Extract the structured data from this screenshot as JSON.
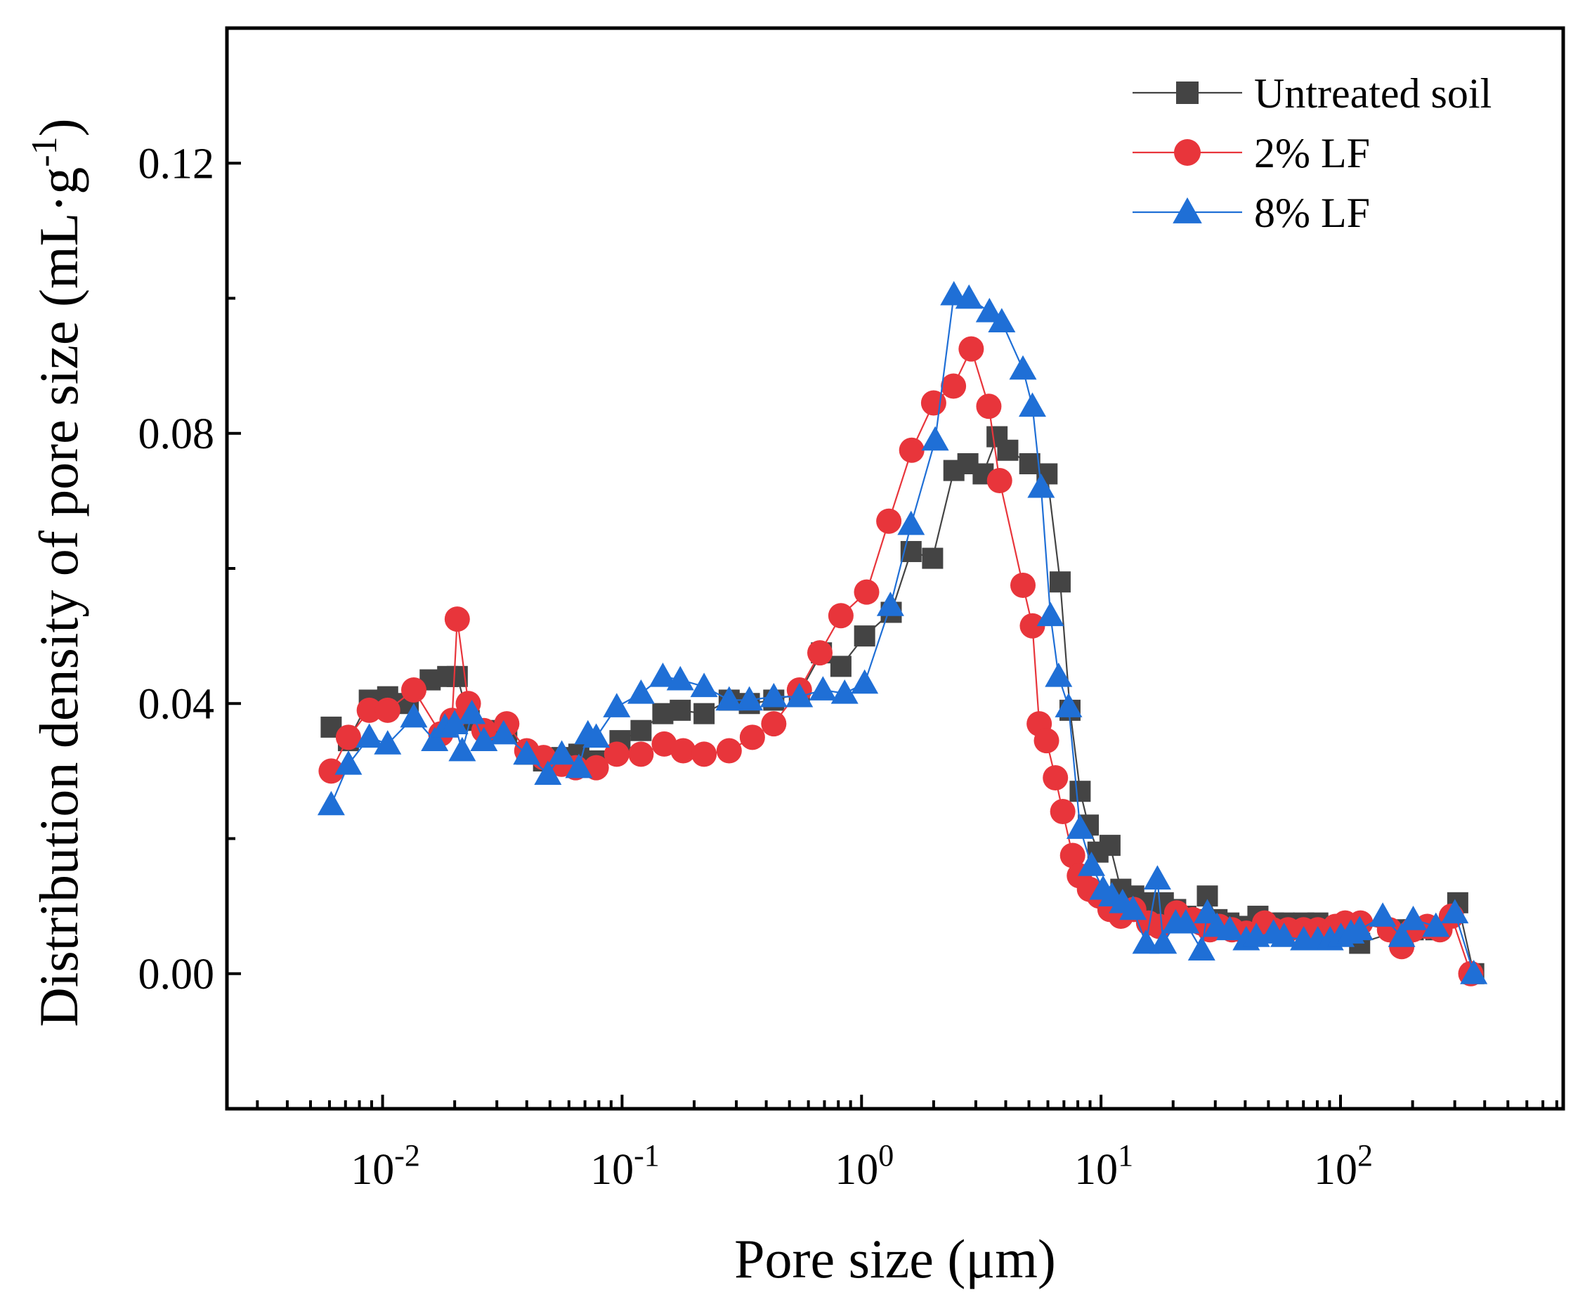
{
  "chart_data": {
    "type": "scatter",
    "title": "",
    "xlabel": "Pore size (μm)",
    "ylabel_main": "Distribution density of pore size (mL·g",
    "ylabel_sup": "-1",
    "ylabel_tail": ")",
    "xscale": "log",
    "xlim_log10": [
      -2.65,
      2.93
    ],
    "ylim": [
      -0.02,
      0.14
    ],
    "x_ticks": [
      {
        "base": "10",
        "exp": "-2",
        "log10": -2
      },
      {
        "base": "10",
        "exp": "-1",
        "log10": -1
      },
      {
        "base": "10",
        "exp": "0",
        "log10": 0
      },
      {
        "base": "10",
        "exp": "1",
        "log10": 1
      },
      {
        "base": "10",
        "exp": "2",
        "log10": 2
      }
    ],
    "y_ticks": [
      {
        "label": "0.00",
        "value": 0.0
      },
      {
        "label": "0.04",
        "value": 0.04
      },
      {
        "label": "0.08",
        "value": 0.08
      },
      {
        "label": "0.12",
        "value": 0.12
      }
    ],
    "y_minor_ticks": [
      0.02,
      0.06,
      0.1
    ],
    "legend_position": "top-right",
    "series": [
      {
        "name": "Untreated soil",
        "color": "#444444",
        "marker": "square",
        "x": [
          0.0061,
          0.0072,
          0.0088,
          0.0105,
          0.0128,
          0.0158,
          0.0187,
          0.0205,
          0.023,
          0.029,
          0.033,
          0.04,
          0.047,
          0.056,
          0.066,
          0.078,
          0.098,
          0.12,
          0.148,
          0.175,
          0.22,
          0.28,
          0.34,
          0.43,
          0.55,
          0.68,
          0.82,
          1.03,
          1.33,
          1.61,
          1.98,
          2.43,
          2.78,
          3.22,
          3.68,
          4.08,
          5.04,
          5.95,
          6.75,
          7.42,
          8.18,
          8.85,
          9.71,
          10.9,
          12.1,
          13.7,
          15.4,
          17.2,
          18.2,
          20.5,
          22.6,
          26.3,
          27.8,
          30.5,
          34.2,
          40.4,
          45.2,
          52.5,
          58.1,
          70.2,
          80.4,
          90.5,
          100.4,
          110.6,
          120.2,
          180.1,
          201.2,
          250.2,
          308.7,
          360.1
        ],
        "values": [
          0.0365,
          0.0345,
          0.0405,
          0.041,
          0.04,
          0.0435,
          0.044,
          0.044,
          0.0375,
          0.036,
          0.036,
          0.0325,
          0.0315,
          0.032,
          0.0325,
          0.0315,
          0.0345,
          0.036,
          0.0385,
          0.039,
          0.0385,
          0.0405,
          0.04,
          0.0405,
          0.0415,
          0.0475,
          0.0455,
          0.05,
          0.0535,
          0.0625,
          0.0615,
          0.0745,
          0.0755,
          0.074,
          0.0795,
          0.0775,
          0.0755,
          0.074,
          0.058,
          0.039,
          0.027,
          0.022,
          0.018,
          0.019,
          0.0125,
          0.0115,
          0.0105,
          0.0095,
          0.0105,
          0.0095,
          0.0085,
          0.008,
          0.0115,
          0.008,
          0.0075,
          0.007,
          0.0085,
          0.0075,
          0.0075,
          0.0075,
          0.0075,
          0.0065,
          0.0065,
          0.0065,
          0.0045,
          0.0065,
          0.0065,
          0.0065,
          0.0105,
          0.0
        ]
      },
      {
        "name": "2% LF",
        "color": "#e8353b",
        "marker": "circle",
        "x": [
          0.0061,
          0.0072,
          0.0088,
          0.0105,
          0.0135,
          0.0175,
          0.0195,
          0.0205,
          0.0228,
          0.0265,
          0.033,
          0.04,
          0.047,
          0.056,
          0.064,
          0.078,
          0.095,
          0.12,
          0.15,
          0.18,
          0.22,
          0.28,
          0.35,
          0.43,
          0.55,
          0.67,
          0.82,
          1.05,
          1.3,
          1.62,
          2.0,
          2.42,
          2.87,
          3.4,
          3.77,
          4.72,
          5.17,
          5.52,
          5.92,
          6.45,
          6.92,
          7.61,
          8.12,
          8.95,
          9.82,
          10.9,
          12.1,
          13.7,
          15.8,
          17.5,
          20.7,
          24.2,
          26.2,
          28.5,
          31.2,
          35.2,
          40.4,
          48.2,
          52.2,
          60.4,
          70.1,
          80.4,
          95.2,
          104.6,
          121.2,
          160.2,
          180.1,
          200.4,
          230.1,
          260.2,
          290.4,
          350.1
        ],
        "values": [
          0.03,
          0.035,
          0.039,
          0.039,
          0.042,
          0.0355,
          0.0375,
          0.0525,
          0.04,
          0.036,
          0.037,
          0.033,
          0.032,
          0.031,
          0.0305,
          0.0305,
          0.0325,
          0.0325,
          0.034,
          0.033,
          0.0325,
          0.033,
          0.035,
          0.037,
          0.042,
          0.0475,
          0.053,
          0.0565,
          0.067,
          0.0775,
          0.0845,
          0.087,
          0.0925,
          0.084,
          0.073,
          0.0575,
          0.0515,
          0.037,
          0.0345,
          0.029,
          0.024,
          0.0175,
          0.0145,
          0.0125,
          0.0115,
          0.0095,
          0.0085,
          0.0095,
          0.0075,
          0.007,
          0.009,
          0.008,
          0.0075,
          0.0065,
          0.007,
          0.0065,
          0.006,
          0.0075,
          0.0065,
          0.0065,
          0.0065,
          0.0065,
          0.007,
          0.0075,
          0.0075,
          0.0065,
          0.004,
          0.0065,
          0.007,
          0.0065,
          0.0085,
          0.0
        ]
      },
      {
        "name": "8% LF",
        "color": "#1f6fd6",
        "marker": "triangle",
        "x": [
          0.0061,
          0.0072,
          0.0088,
          0.0105,
          0.0135,
          0.0165,
          0.0182,
          0.02,
          0.0215,
          0.0236,
          0.0265,
          0.032,
          0.04,
          0.049,
          0.056,
          0.066,
          0.072,
          0.078,
          0.095,
          0.12,
          0.148,
          0.175,
          0.22,
          0.28,
          0.34,
          0.43,
          0.55,
          0.69,
          0.85,
          1.03,
          1.32,
          1.61,
          2.03,
          2.43,
          2.81,
          3.42,
          3.85,
          4.72,
          5.17,
          5.62,
          6.15,
          6.65,
          7.32,
          8.18,
          9.12,
          10.2,
          11.1,
          12.3,
          13.6,
          15.4,
          17.2,
          18.2,
          20.5,
          22.6,
          26.3,
          27.8,
          30.5,
          34.5,
          40.4,
          44.5,
          52.5,
          58.1,
          70.2,
          80.4,
          90.5,
          100.4,
          110.6,
          120.2,
          150.1,
          180.1,
          201.2,
          250.2,
          300.4,
          360.1
        ],
        "values": [
          0.025,
          0.031,
          0.035,
          0.034,
          0.038,
          0.0345,
          0.0365,
          0.037,
          0.033,
          0.0385,
          0.0345,
          0.0355,
          0.0325,
          0.0295,
          0.0325,
          0.0305,
          0.0355,
          0.035,
          0.0395,
          0.0415,
          0.044,
          0.0435,
          0.0425,
          0.0405,
          0.0405,
          0.041,
          0.041,
          0.042,
          0.0415,
          0.043,
          0.0545,
          0.0665,
          0.079,
          0.1005,
          0.1,
          0.098,
          0.0965,
          0.0895,
          0.084,
          0.072,
          0.053,
          0.044,
          0.0395,
          0.0215,
          0.016,
          0.0125,
          0.0115,
          0.0105,
          0.0095,
          0.0045,
          0.014,
          0.0045,
          0.0075,
          0.0075,
          0.0035,
          0.009,
          0.007,
          0.0065,
          0.005,
          0.0055,
          0.006,
          0.0055,
          0.005,
          0.005,
          0.005,
          0.0055,
          0.006,
          0.0065,
          0.0085,
          0.0055,
          0.008,
          0.007,
          0.009,
          0.0
        ]
      }
    ]
  }
}
